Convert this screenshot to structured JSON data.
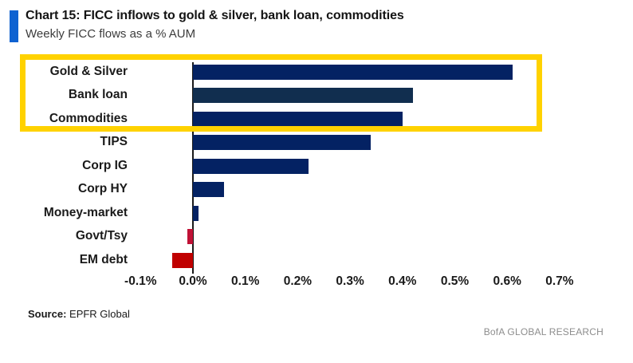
{
  "header": {
    "title": "Chart 15: FICC inflows to gold & silver, bank loan, commodities",
    "subtitle": "Weekly FICC flows as a % AUM",
    "accent_color": "#0E62D1"
  },
  "chart_data": {
    "type": "bar",
    "orientation": "horizontal",
    "title": "Chart 15: FICC inflows to gold & silver, bank loan, commodities",
    "subtitle": "Weekly FICC flows as a % AUM",
    "xlabel": "",
    "ylabel": "",
    "unit": "% AUM",
    "categories": [
      "Gold & Silver",
      "Bank loan",
      "Commodities",
      "TIPS",
      "Corp IG",
      "Corp HY",
      "Money-market",
      "Govt/Tsy",
      "EM debt"
    ],
    "values": [
      0.61,
      0.42,
      0.4,
      0.34,
      0.22,
      0.06,
      0.01,
      -0.01,
      -0.04
    ],
    "bar_colors": [
      "#042263",
      "#112E4F",
      "#042263",
      "#042263",
      "#042263",
      "#042263",
      "#042263",
      "#C01236",
      "#C00000"
    ],
    "xlim": [
      -0.1,
      0.7
    ],
    "x_tick_values": [
      -0.1,
      0.0,
      0.1,
      0.2,
      0.3,
      0.4,
      0.5,
      0.6,
      0.7
    ],
    "x_tick_labels": [
      "-0.1%",
      "0.0%",
      "0.1%",
      "0.2%",
      "0.3%",
      "0.4%",
      "0.5%",
      "0.6%",
      "0.7%"
    ],
    "grid": false,
    "legend": false,
    "axis_line_color": "#1a1a1a",
    "highlight_box": {
      "highlighted_categories": [
        "Gold & Silver",
        "Bank loan",
        "Commodities"
      ],
      "color": "#FFD200"
    }
  },
  "footer": {
    "source_label": "Source:",
    "source_value": " EPFR Global",
    "brand": "BofA GLOBAL RESEARCH"
  }
}
